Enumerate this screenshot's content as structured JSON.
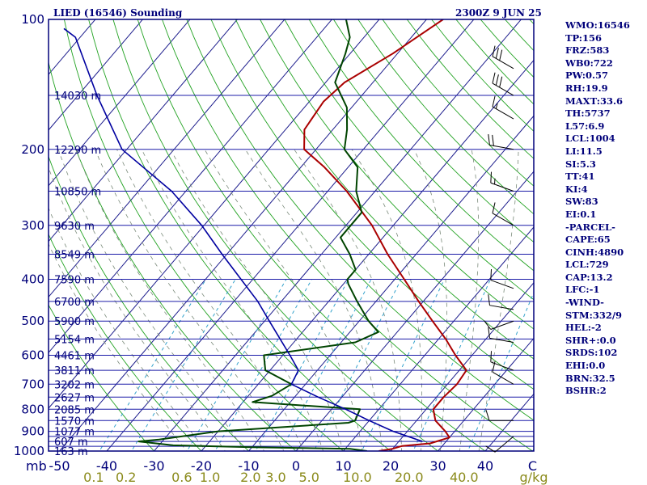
{
  "header": {
    "title": "LIED (16546) Sounding",
    "time": "2300Z  9 JUN 25"
  },
  "indices": [
    "WMO:16546",
    "TP:156",
    "FRZ:583",
    "WB0:722",
    "PW:0.57",
    "RH:19.9",
    "MAXT:33.6",
    "TH:5737",
    "L57:6.9",
    "LCL:1004",
    "LI:11.5",
    "SI:5.3",
    "TT:41",
    "KI:4",
    "SW:83",
    "EI:0.1",
    "-PARCEL-",
    "CAPE:65",
    "CINH:4890",
    "LCL:729",
    "CAP:13.2",
    "LFC:-1",
    "-WIND-",
    "STM:332/9",
    "HEL:-2",
    "SHR+:0.0",
    "SRDS:102",
    "EHI:0.0",
    "BRN:32.5",
    "BSHR:2"
  ],
  "colors": {
    "frame": "#00007a",
    "isobar": "#1c1ca8",
    "isotherm": "#1c1c8c",
    "dry_adiabat": "#22a222",
    "moist_adiabat": "#7a8a7a",
    "mixing_ratio": "#33a2cc",
    "temperature": "#aa0000",
    "dewpoint": "#004400",
    "parcel": "#0000a0",
    "wind": "#000000",
    "wlab": "#8a8a1a"
  },
  "chart_data": {
    "type": "skew-t log-p sounding",
    "xlabel": "C",
    "ylabel": "mb",
    "mixing_ratio_unit": "g/kg",
    "xlim": [
      -50,
      50
    ],
    "ylim": [
      1000,
      100
    ],
    "pressure_ticks": [
      1000,
      900,
      800,
      700,
      600,
      500,
      400,
      300,
      200,
      100
    ],
    "temperature_ticks": [
      -50,
      -40,
      -30,
      -20,
      -10,
      0,
      10,
      20,
      30,
      40,
      50
    ],
    "temperature_tick_labels": [
      "-50",
      "-40",
      "-30",
      "-20",
      "-10",
      "0",
      "10",
      "20",
      "30",
      "40",
      "C"
    ],
    "mixing_ratio_ticks": [
      "0.1",
      "0.2",
      "0.6",
      "1.0",
      "2.0",
      "3.0",
      "5.0",
      "10.0",
      "20.0",
      "40.0"
    ],
    "height_labels": [
      {
        "p": 150,
        "label": "14030 m"
      },
      {
        "p": 200,
        "label": "12290 m"
      },
      {
        "p": 250,
        "label": "10850 m"
      },
      {
        "p": 300,
        "label": "9630 m"
      },
      {
        "p": 350,
        "label": "8549 m"
      },
      {
        "p": 400,
        "label": "7590 m"
      },
      {
        "p": 450,
        "label": "6700 m"
      },
      {
        "p": 500,
        "label": "5900 m"
      },
      {
        "p": 550,
        "label": "5154 m"
      },
      {
        "p": 600,
        "label": "4461 m"
      },
      {
        "p": 650,
        "label": "3811 m"
      },
      {
        "p": 700,
        "label": "3202 m"
      },
      {
        "p": 750,
        "label": "2627 m"
      },
      {
        "p": 800,
        "label": "2085 m"
      },
      {
        "p": 850,
        "label": "1570 m"
      },
      {
        "p": 900,
        "label": "1077 m"
      },
      {
        "p": 950,
        "label": "607 m"
      },
      {
        "p": 1000,
        "label": "163 m"
      }
    ],
    "grid": true,
    "series": [
      {
        "name": "temperature",
        "points": [
          [
            1000,
            17.5
          ],
          [
            988,
            20
          ],
          [
            973,
            21.5
          ],
          [
            960,
            27
          ],
          [
            930,
            30
          ],
          [
            900,
            28
          ],
          [
            850,
            24
          ],
          [
            800,
            21.5
          ],
          [
            750,
            21.5
          ],
          [
            700,
            22
          ],
          [
            650,
            21.5
          ],
          [
            600,
            16.5
          ],
          [
            550,
            11.5
          ],
          [
            500,
            5.5
          ],
          [
            450,
            -1
          ],
          [
            400,
            -8
          ],
          [
            350,
            -16
          ],
          [
            300,
            -24.5
          ],
          [
            250,
            -36
          ],
          [
            220,
            -45
          ],
          [
            200,
            -52.5
          ],
          [
            180,
            -56
          ],
          [
            155,
            -57
          ],
          [
            140,
            -56
          ],
          [
            120,
            -51
          ],
          [
            100,
            -46.5
          ]
        ]
      },
      {
        "name": "dewpoint",
        "points": [
          [
            1000,
            15
          ],
          [
            988,
            11
          ],
          [
            980,
            -10
          ],
          [
            970,
            -27
          ],
          [
            960,
            -31
          ],
          [
            950,
            -35
          ],
          [
            940,
            -31
          ],
          [
            900,
            -20
          ],
          [
            860,
            6
          ],
          [
            850,
            7
          ],
          [
            800,
            6
          ],
          [
            770,
            -18
          ],
          [
            745,
            -15
          ],
          [
            700,
            -13
          ],
          [
            650,
            -21
          ],
          [
            600,
            -24
          ],
          [
            560,
            -7
          ],
          [
            530,
            -4
          ],
          [
            500,
            -8
          ],
          [
            450,
            -14
          ],
          [
            410,
            -19
          ],
          [
            400,
            -20
          ],
          [
            380,
            -20
          ],
          [
            350,
            -24
          ],
          [
            320,
            -29
          ],
          [
            300,
            -29
          ],
          [
            280,
            -29
          ],
          [
            250,
            -34
          ],
          [
            220,
            -38
          ],
          [
            200,
            -44
          ],
          [
            180,
            -47
          ],
          [
            160,
            -51
          ],
          [
            140,
            -58
          ],
          [
            120,
            -61
          ],
          [
            110,
            -63
          ],
          [
            100,
            -67
          ]
        ]
      },
      {
        "name": "parcel",
        "points": [
          [
            950,
            25
          ],
          [
            900,
            17
          ],
          [
            850,
            10
          ],
          [
            800,
            3
          ],
          [
            750,
            -5
          ],
          [
            700,
            -13
          ],
          [
            650,
            -14
          ],
          [
            600,
            -18.5
          ],
          [
            550,
            -23.5
          ],
          [
            500,
            -29
          ],
          [
            450,
            -35
          ],
          [
            400,
            -42.5
          ],
          [
            350,
            -51
          ],
          [
            300,
            -60.5
          ],
          [
            250,
            -73
          ],
          [
            200,
            -91
          ],
          [
            150,
            -106
          ],
          [
            110,
            -121
          ],
          [
            105,
            -125
          ]
        ]
      }
    ],
    "wind_barbs": [
      {
        "p": 925,
        "dir": 230,
        "kt": 8
      },
      {
        "p": 850,
        "dir": 270,
        "kt": 10
      },
      {
        "p": 700,
        "dir": 300,
        "kt": 10
      },
      {
        "p": 650,
        "dir": 290,
        "kt": 8
      },
      {
        "p": 560,
        "dir": 280,
        "kt": 10
      },
      {
        "p": 500,
        "dir": 250,
        "kt": 10
      },
      {
        "p": 470,
        "dir": 280,
        "kt": 12
      },
      {
        "p": 420,
        "dir": 290,
        "kt": 10
      },
      {
        "p": 300,
        "dir": 300,
        "kt": 12
      },
      {
        "p": 250,
        "dir": 290,
        "kt": 15
      },
      {
        "p": 200,
        "dir": 280,
        "kt": 20
      },
      {
        "p": 170,
        "dir": 300,
        "kt": 15
      },
      {
        "p": 150,
        "dir": 300,
        "kt": 30
      },
      {
        "p": 130,
        "dir": 300,
        "kt": 30
      }
    ]
  }
}
